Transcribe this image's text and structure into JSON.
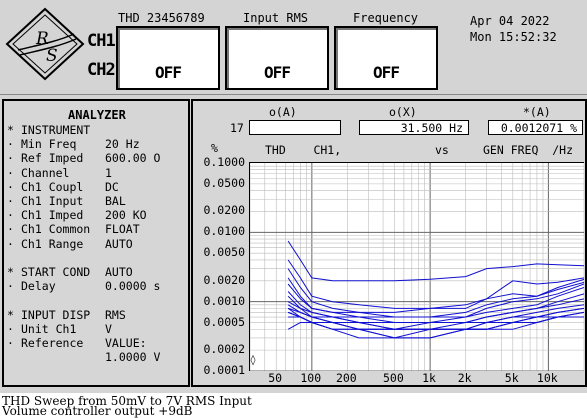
{
  "header": {
    "displays": [
      {
        "title": "THD 23456789",
        "value": "OFF"
      },
      {
        "title": "Input RMS",
        "value": "OFF"
      },
      {
        "title": "Frequency",
        "value": "OFF"
      }
    ],
    "channel_labels": [
      "CH1",
      "CH2"
    ],
    "date": "Apr 04 2022",
    "time": "Mon 15:52:32"
  },
  "analyzer": {
    "title": "ANALYZER",
    "lines": [
      {
        "marker": "*",
        "label": "INSTRUMENT",
        "value": ""
      },
      {
        "marker": "·",
        "label": "Min Freq",
        "value": "20 Hz"
      },
      {
        "marker": "·",
        "label": "Ref Imped",
        "value": "600.00 O"
      },
      {
        "marker": "·",
        "label": "Channel",
        "value": "1"
      },
      {
        "marker": "·",
        "label": "Ch1 Coupl",
        "value": "DC"
      },
      {
        "marker": "·",
        "label": "Ch1 Input",
        "value": "BAL"
      },
      {
        "marker": "·",
        "label": "Ch1 Imped",
        "value": "200 KO"
      },
      {
        "marker": "·",
        "label": "Ch1 Common",
        "value": "FLOAT"
      },
      {
        "marker": "·",
        "label": "Ch1 Range",
        "value": "AUTO"
      },
      {
        "marker": "",
        "label": "",
        "value": ""
      },
      {
        "marker": "*",
        "label": "START COND",
        "value": "AUTO"
      },
      {
        "marker": "·",
        "label": "Delay",
        "value": "0.0000 s"
      },
      {
        "marker": "",
        "label": "",
        "value": ""
      },
      {
        "marker": "*",
        "label": "INPUT DISP",
        "value": "RMS"
      },
      {
        "marker": "·",
        "label": "Unit Ch1",
        "value": "V"
      },
      {
        "marker": "·",
        "label": "Reference",
        "value": "VALUE:"
      },
      {
        "marker": "",
        "label": "",
        "value": "1.0000 V"
      }
    ]
  },
  "graph": {
    "row_number": "17",
    "cursor_headers": [
      "o(A)",
      "o(X)",
      "*(A)"
    ],
    "cursor_values": [
      "",
      "31.500  Hz",
      "0.0012071 %"
    ],
    "y_unit": "%",
    "title_left": "THD    CH1,",
    "title_vs": "vs",
    "title_right": "GEN FREQ  /Hz",
    "start_marker": "◊"
  },
  "chart_data": {
    "type": "line",
    "xscale": "log",
    "yscale": "log",
    "xlim": [
      30,
      20000
    ],
    "ylim": [
      0.0001,
      0.1
    ],
    "grid": true,
    "y_ticks": [
      "0.1000",
      "0.0500",
      "0.0200",
      "0.0100",
      "0.0050",
      "0.0020",
      "0.0010",
      "0.0005",
      "0.0002",
      "0.0001"
    ],
    "x_ticks": [
      "50",
      "100",
      "200",
      "500",
      "1k",
      "2k",
      "5k",
      "10k"
    ],
    "line_color": "#1010d0",
    "x": [
      63,
      80,
      100,
      150,
      250,
      500,
      1000,
      2000,
      3000,
      5000,
      8000,
      12000,
      20000
    ],
    "series": [
      {
        "values": [
          0.0075,
          0.004,
          0.0022,
          0.002,
          0.002,
          0.002,
          0.0021,
          0.0023,
          0.003,
          0.0032,
          0.0035,
          0.0034,
          0.0033
        ]
      },
      {
        "values": [
          0.004,
          0.0022,
          0.0012,
          0.001,
          0.0009,
          0.0008,
          0.0008,
          0.0008,
          0.0011,
          0.002,
          0.0018,
          0.0019,
          0.0022
        ]
      },
      {
        "values": [
          0.003,
          0.0016,
          0.001,
          0.0008,
          0.0007,
          0.0007,
          0.0008,
          0.0009,
          0.0011,
          0.0013,
          0.0012,
          0.0016,
          0.0021
        ]
      },
      {
        "values": [
          0.0022,
          0.0012,
          0.0008,
          0.0007,
          0.0007,
          0.0006,
          0.0006,
          0.0007,
          0.0009,
          0.0011,
          0.0012,
          0.0015,
          0.0019
        ]
      },
      {
        "values": [
          0.0018,
          0.0011,
          0.0008,
          0.0007,
          0.0006,
          0.0006,
          0.0006,
          0.0006,
          0.0008,
          0.001,
          0.0011,
          0.0013,
          0.0018
        ]
      },
      {
        "values": [
          0.0014,
          0.0009,
          0.0007,
          0.0006,
          0.0006,
          0.0005,
          0.0005,
          0.0006,
          0.0007,
          0.0008,
          0.0009,
          0.0012,
          0.0016
        ]
      },
      {
        "values": [
          0.0012,
          0.0008,
          0.0007,
          0.0006,
          0.0005,
          0.0005,
          0.0005,
          0.0005,
          0.0006,
          0.0007,
          0.0008,
          0.001,
          0.0013
        ]
      },
      {
        "values": [
          0.001,
          0.0008,
          0.0006,
          0.0006,
          0.0005,
          0.0004,
          0.0005,
          0.0005,
          0.0006,
          0.0007,
          0.0008,
          0.0009,
          0.0011
        ]
      },
      {
        "values": [
          0.0009,
          0.0007,
          0.0006,
          0.0005,
          0.0005,
          0.0004,
          0.0004,
          0.0005,
          0.0005,
          0.0006,
          0.0007,
          0.0008,
          0.0009
        ]
      },
      {
        "values": [
          0.0008,
          0.0007,
          0.0006,
          0.0005,
          0.0004,
          0.0004,
          0.0004,
          0.0004,
          0.0005,
          0.0006,
          0.0006,
          0.0007,
          0.0008
        ]
      },
      {
        "values": [
          0.0008,
          0.0006,
          0.0005,
          0.0005,
          0.0004,
          0.0004,
          0.0004,
          0.0004,
          0.0005,
          0.0005,
          0.0006,
          0.0007,
          0.0008
        ]
      },
      {
        "values": [
          0.0007,
          0.0006,
          0.0005,
          0.0005,
          0.0004,
          0.0004,
          0.0004,
          0.0004,
          0.0004,
          0.0005,
          0.0006,
          0.0006,
          0.0007
        ]
      },
      {
        "values": [
          0.0007,
          0.0006,
          0.0005,
          0.0004,
          0.0004,
          0.0003,
          0.0004,
          0.0004,
          0.0004,
          0.0005,
          0.0005,
          0.0006,
          0.0007
        ]
      },
      {
        "values": [
          0.0006,
          0.0006,
          0.0005,
          0.0004,
          0.0004,
          0.0003,
          0.0003,
          0.0004,
          0.0004,
          0.0005,
          0.0005,
          0.0006,
          0.0006
        ]
      },
      {
        "values": [
          0.0004,
          0.0005,
          0.0005,
          0.0004,
          0.0003,
          0.0003,
          0.0003,
          0.0004,
          0.0004,
          0.0004,
          0.0005,
          0.0006,
          0.0006
        ]
      }
    ]
  },
  "caption": {
    "line1": "THD Sweep from 50mV to 7V RMS Input",
    "line2": "Volume controller output +9dB"
  }
}
